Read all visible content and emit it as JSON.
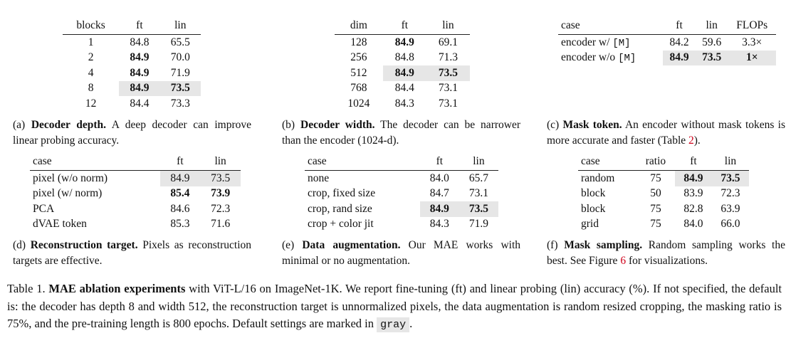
{
  "tables": [
    {
      "header": [
        "blocks",
        "ft",
        "lin"
      ],
      "rows": [
        [
          "1",
          "84.8",
          "65.5"
        ],
        [
          "2",
          "84.9",
          "70.0"
        ],
        [
          "4",
          "84.9",
          "71.9"
        ],
        [
          "8",
          "84.9",
          "73.5"
        ],
        [
          "12",
          "84.4",
          "73.3"
        ]
      ],
      "bold": [
        [
          1,
          1
        ],
        [
          2,
          1
        ],
        [
          3,
          1
        ],
        [
          3,
          2
        ]
      ],
      "highlight": {
        "row": 3,
        "cols": [
          1,
          2
        ]
      },
      "caption": {
        "label": "(a)",
        "title": "Decoder depth.",
        "text": "A deep decoder can improve linear probing accuracy."
      }
    },
    {
      "header": [
        "dim",
        "ft",
        "lin"
      ],
      "rows": [
        [
          "128",
          "84.9",
          "69.1"
        ],
        [
          "256",
          "84.8",
          "71.3"
        ],
        [
          "512",
          "84.9",
          "73.5"
        ],
        [
          "768",
          "84.4",
          "73.1"
        ],
        [
          "1024",
          "84.3",
          "73.1"
        ]
      ],
      "bold": [
        [
          0,
          1
        ],
        [
          2,
          1
        ],
        [
          2,
          2
        ]
      ],
      "highlight": {
        "row": 2,
        "cols": [
          1,
          2
        ]
      },
      "caption": {
        "label": "(b)",
        "title": "Decoder width.",
        "text": "The decoder can be narrower than the encoder (1024-d)."
      }
    },
    {
      "header": [
        "case",
        "ft",
        "lin",
        "FLOPs"
      ],
      "rows": [
        [
          {
            "text": "encoder w/",
            "code": "[M]"
          },
          "84.2",
          "59.6",
          "3.3×"
        ],
        [
          {
            "text": "encoder w/o",
            "code": "[M]"
          },
          "84.9",
          "73.5",
          "1×"
        ]
      ],
      "bold": [
        [
          1,
          1
        ],
        [
          1,
          2
        ],
        [
          1,
          3
        ]
      ],
      "highlight": {
        "row": 1,
        "cols": [
          1,
          2,
          3
        ]
      },
      "caption": {
        "label": "(c)",
        "title": "Mask token.",
        "text": "An encoder without mask tokens is more accurate and faster (Table ",
        "link": "2",
        "after": ")."
      }
    },
    {
      "header": [
        "case",
        "ft",
        "lin"
      ],
      "rows": [
        [
          "pixel (w/o norm)",
          "84.9",
          "73.5"
        ],
        [
          "pixel (w/ norm)",
          "85.4",
          "73.9"
        ],
        [
          "PCA",
          "84.6",
          "72.3"
        ],
        [
          "dVAE token",
          "85.3",
          "71.6"
        ]
      ],
      "bold": [
        [
          1,
          1
        ],
        [
          1,
          2
        ]
      ],
      "highlight": {
        "row": 0,
        "cols": [
          1,
          2
        ]
      },
      "caption": {
        "label": "(d)",
        "title": "Reconstruction target.",
        "text": "Pixels as reconstruction targets are effective."
      }
    },
    {
      "header": [
        "case",
        "ft",
        "lin"
      ],
      "rows": [
        [
          "none",
          "84.0",
          "65.7"
        ],
        [
          "crop, fixed size",
          "84.7",
          "73.1"
        ],
        [
          "crop, rand size",
          "84.9",
          "73.5"
        ],
        [
          "crop + color jit",
          "84.3",
          "71.9"
        ]
      ],
      "bold": [
        [
          2,
          1
        ],
        [
          2,
          2
        ]
      ],
      "highlight": {
        "row": 2,
        "cols": [
          1,
          2
        ]
      },
      "caption": {
        "label": "(e)",
        "title": "Data augmentation.",
        "text": "Our MAE works with minimal or no augmentation."
      }
    },
    {
      "header": [
        "case",
        "ratio",
        "ft",
        "lin"
      ],
      "rows": [
        [
          "random",
          "75",
          "84.9",
          "73.5"
        ],
        [
          "block",
          "50",
          "83.9",
          "72.3"
        ],
        [
          "block",
          "75",
          "82.8",
          "63.9"
        ],
        [
          "grid",
          "75",
          "84.0",
          "66.0"
        ]
      ],
      "bold": [
        [
          0,
          2
        ],
        [
          0,
          3
        ]
      ],
      "highlight": {
        "row": 0,
        "cols": [
          2,
          3
        ]
      },
      "caption": {
        "label": "(f)",
        "title": "Mask sampling.",
        "text": "Random sampling works the best. See Figure ",
        "link": "6",
        "after": " for visualizations."
      }
    }
  ],
  "caption": {
    "label": "Table 1.",
    "title": "MAE ablation experiments",
    "text": "with ViT-L/16 on ImageNet-1K. We report fine-tuning (ft) and linear probing (lin) accuracy (%). If not specified, the default is: the decoder has depth 8 and width 512, the reconstruction target is unnormalized pixels, the data augmentation is random resized cropping, the masking ratio is 75%, and the pre-training length is 800 epochs. Default settings are marked in",
    "code": "gray",
    "after": "."
  }
}
